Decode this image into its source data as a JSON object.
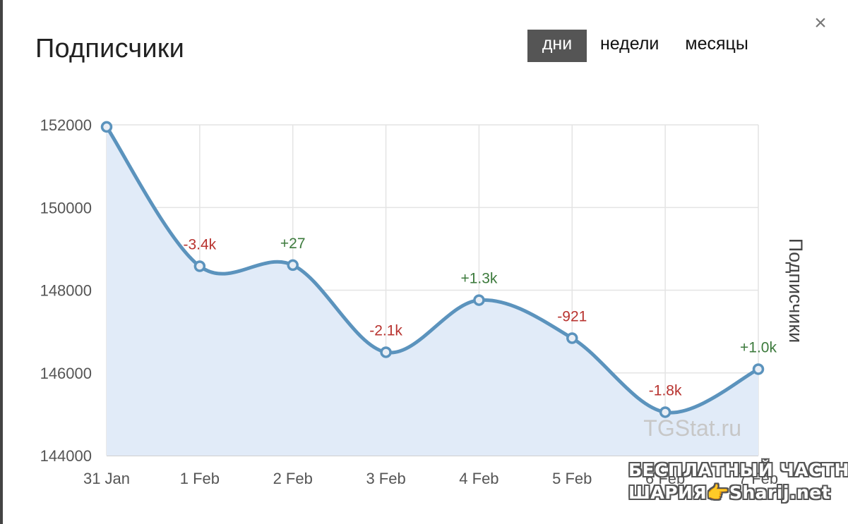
{
  "header": {
    "title": "Подписчики",
    "tabs": [
      {
        "label": "дни",
        "active": true
      },
      {
        "label": "недели",
        "active": false
      },
      {
        "label": "месяцы",
        "active": false
      }
    ],
    "close_label": "×"
  },
  "chart_data": {
    "type": "line",
    "title": "Подписчики",
    "ylabel": "Подписчики",
    "xlabel": "",
    "categories": [
      "31 Jan",
      "1 Feb",
      "2 Feb",
      "3 Feb",
      "4 Feb",
      "5 Feb",
      "6 Feb",
      "7 Feb"
    ],
    "series": [
      {
        "values": [
          151950,
          148580,
          148607,
          146500,
          147760,
          146840,
          145050,
          146090
        ]
      }
    ],
    "data_labels": [
      "",
      "-3.4k",
      "+27",
      "-2.1k",
      "+1.3k",
      "-921",
      "-1.8k",
      "+1.0k"
    ],
    "y_ticks": [
      144000,
      146000,
      148000,
      150000,
      152000
    ],
    "ylim": [
      144000,
      152000
    ],
    "grid": true,
    "area_fill": true,
    "colors": {
      "line": "#5b93bd",
      "fill": "#e1ebf8",
      "grid": "#e4e4e4",
      "positive_label": "#3c7a3c",
      "negative_label": "#b8332f"
    },
    "watermark_text": "TGStat.ru"
  },
  "overlay": {
    "line1": "БЕСПЛАТНЫЙ ЧАСТНЫЙ",
    "line2": "ШАРИЯ👉Sharij.net"
  }
}
